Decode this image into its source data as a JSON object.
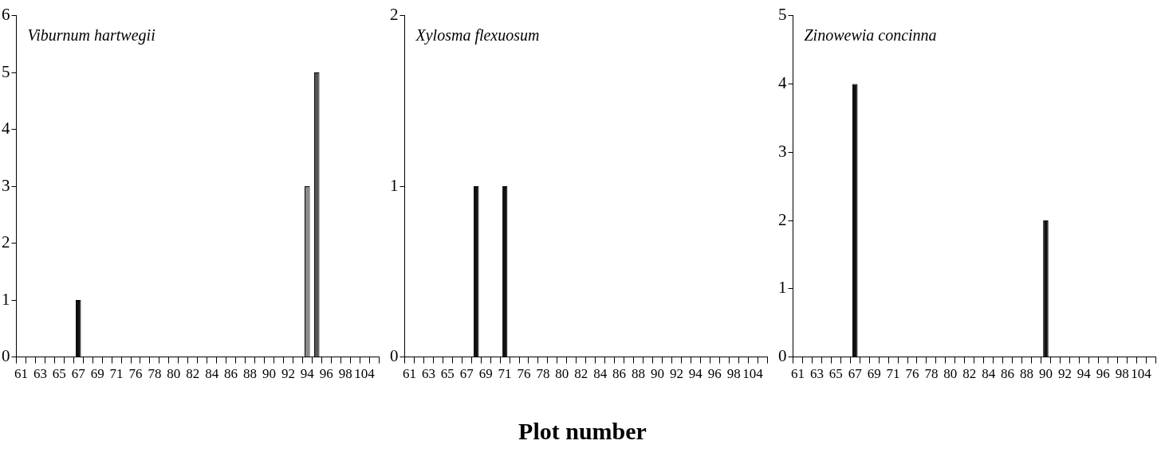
{
  "chart_data": [
    {
      "type": "bar",
      "title": "Viburnum hartwegii",
      "categories": [
        "61",
        null,
        "63",
        null,
        "65",
        null,
        "67",
        null,
        "69",
        null,
        "71",
        null,
        "76",
        null,
        "78",
        null,
        "80",
        null,
        "82",
        null,
        "84",
        null,
        "86",
        null,
        "88",
        null,
        "90",
        null,
        "92",
        null,
        "94",
        null,
        "96",
        null,
        "98",
        null,
        "104",
        null
      ],
      "values": [
        0,
        0,
        0,
        0,
        0,
        0,
        1,
        0,
        0,
        0,
        0,
        0,
        0,
        0,
        0,
        0,
        0,
        0,
        0,
        0,
        0,
        0,
        0,
        0,
        0,
        0,
        0,
        0,
        0,
        0,
        3,
        5,
        0,
        0,
        0,
        0,
        0,
        0
      ],
      "colors": [
        "#111111",
        "#111111",
        "#111111",
        "#111111",
        "#111111",
        "#111111",
        "#111111",
        "#111111",
        "#111111",
        "#111111",
        "#111111",
        "#111111",
        "#111111",
        "#111111",
        "#111111",
        "#111111",
        "#111111",
        "#111111",
        "#111111",
        "#111111",
        "#111111",
        "#111111",
        "#111111",
        "#111111",
        "#111111",
        "#111111",
        "#111111",
        "#111111",
        "#111111",
        "#111111",
        "#8a8a8a",
        "#555555",
        "#111111",
        "#111111",
        "#111111",
        "#111111",
        "#111111",
        "#111111"
      ],
      "ylim": [
        0,
        6
      ],
      "yticks": [
        0,
        1,
        2,
        3,
        4,
        5,
        6
      ],
      "grid": false,
      "legend": false
    },
    {
      "type": "bar",
      "title": "Xylosma flexuosum",
      "xlabel": "Plot number",
      "categories": [
        "61",
        null,
        "63",
        null,
        "65",
        null,
        "67",
        null,
        "69",
        null,
        "71",
        null,
        "76",
        null,
        "78",
        null,
        "80",
        null,
        "82",
        null,
        "84",
        null,
        "86",
        null,
        "88",
        null,
        "90",
        null,
        "92",
        null,
        "94",
        null,
        "96",
        null,
        "98",
        null,
        "104",
        null
      ],
      "values": [
        0,
        0,
        0,
        0,
        0,
        0,
        0,
        1,
        0,
        0,
        1,
        0,
        0,
        0,
        0,
        0,
        0,
        0,
        0,
        0,
        0,
        0,
        0,
        0,
        0,
        0,
        0,
        0,
        0,
        0,
        0,
        0,
        0,
        0,
        0,
        0,
        0,
        0
      ],
      "color": "#111111",
      "ylim": [
        0,
        2
      ],
      "yticks": [
        0,
        1,
        2
      ],
      "grid": false,
      "legend": false
    },
    {
      "type": "bar",
      "title": "Zinowewia concinna",
      "categories": [
        "61",
        null,
        "63",
        null,
        "65",
        null,
        "67",
        null,
        "69",
        null,
        "71",
        null,
        "76",
        null,
        "78",
        null,
        "80",
        null,
        "82",
        null,
        "84",
        null,
        "86",
        null,
        "88",
        null,
        "90",
        null,
        "92",
        null,
        "94",
        null,
        "96",
        null,
        "98",
        null,
        "104",
        null
      ],
      "values": [
        0,
        0,
        0,
        0,
        0,
        0,
        4,
        0,
        0,
        0,
        0,
        0,
        0,
        0,
        0,
        0,
        0,
        0,
        0,
        0,
        0,
        0,
        0,
        0,
        0,
        0,
        2,
        0,
        0,
        0,
        0,
        0,
        0,
        0,
        0,
        0,
        0,
        0
      ],
      "color": "#111111",
      "ylim": [
        0,
        5
      ],
      "yticks": [
        0,
        1,
        2,
        3,
        4,
        5
      ],
      "grid": false,
      "legend": false
    }
  ]
}
